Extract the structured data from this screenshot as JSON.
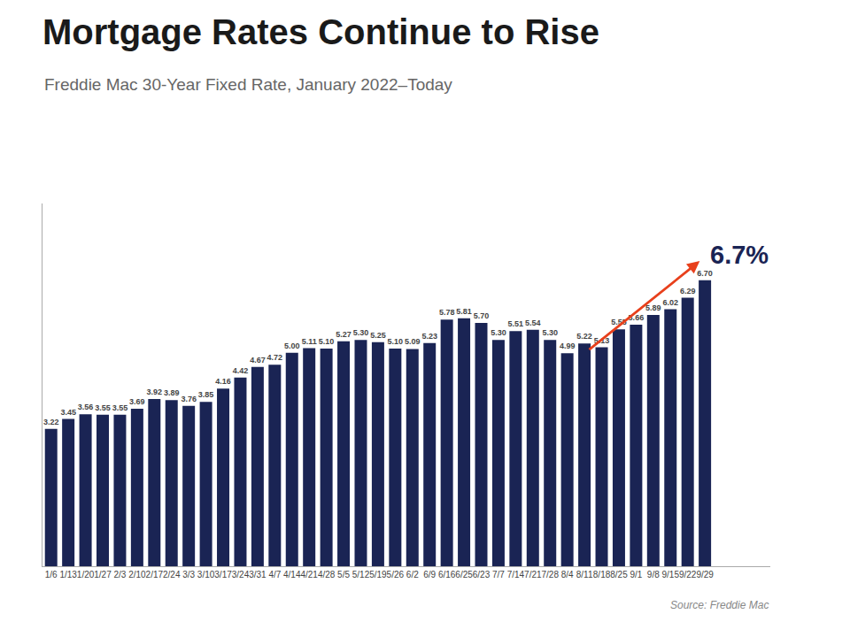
{
  "chart_data": {
    "type": "bar",
    "title": "Mortgage Rates Continue to Rise",
    "subtitle": "Freddie Mac 30-Year Fixed Rate, January 2022–Today",
    "source": "Source: Freddie Mac",
    "annotations": [
      {
        "text": "6.7%"
      }
    ],
    "categories": [
      "1/6",
      "1/13",
      "1/20",
      "1/27",
      "2/3",
      "2/10",
      "2/17",
      "2/24",
      "3/3",
      "3/10",
      "3/17",
      "3/24",
      "3/31",
      "4/7",
      "4/14",
      "4/21",
      "4/28",
      "5/5",
      "5/12",
      "5/19",
      "5/26",
      "6/2",
      "6/9",
      "6/16",
      "6/25",
      "6/23",
      "7/7",
      "7/14",
      "7/21",
      "7/28",
      "8/4",
      "8/11",
      "8/18",
      "8/25",
      "9/1",
      "9/8",
      "9/15",
      "9/22",
      "9/29"
    ],
    "values": [
      3.22,
      3.45,
      3.56,
      3.55,
      3.55,
      3.69,
      3.92,
      3.89,
      3.76,
      3.85,
      4.16,
      4.42,
      4.67,
      4.72,
      5.0,
      5.11,
      5.1,
      5.27,
      5.3,
      5.25,
      5.1,
      5.09,
      5.23,
      5.78,
      5.81,
      5.7,
      5.3,
      5.51,
      5.54,
      5.3,
      4.99,
      5.22,
      5.13,
      5.55,
      5.66,
      5.89,
      6.02,
      6.29,
      6.7
    ],
    "value_labels": [
      "3.22",
      "3.45",
      "3.56",
      "3.55",
      "3.55",
      "3.69",
      "3.92",
      "3.89",
      "3.76",
      "3.85",
      "4.16",
      "4.42",
      "4.67",
      "4.72",
      "5.00",
      "5.11",
      "5.10",
      "5.27",
      "5.30",
      "5.25",
      "5.10",
      "5.09",
      "5.23",
      "5.78",
      "5.81",
      "5.70",
      "5.30",
      "5.51",
      "5.54",
      "5.30",
      "4.99",
      "5.22",
      "5.13",
      "5.55",
      "5.66",
      "5.89",
      "6.02",
      "6.29",
      "6.70"
    ],
    "color": "#1a2454",
    "ylim": [
      0,
      8.5
    ],
    "yticks": [],
    "grid": false,
    "data_labels": true,
    "tick_labels": "x"
  }
}
